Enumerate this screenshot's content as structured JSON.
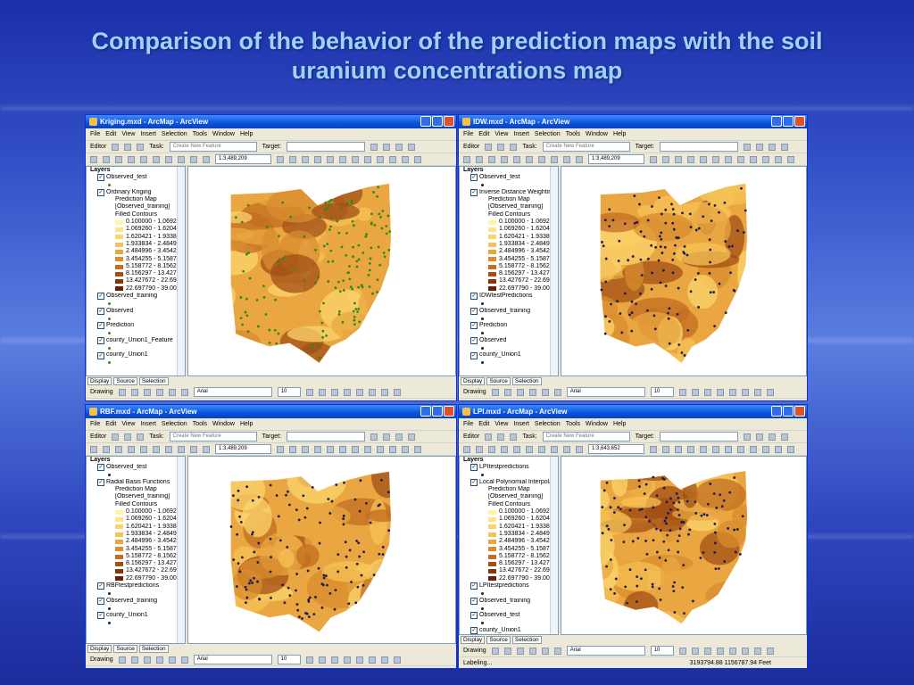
{
  "title": "Comparison of the behavior of the prediction maps with the soil uranium concentrations map",
  "menu": [
    "File",
    "Edit",
    "View",
    "Insert",
    "Selection",
    "Tools",
    "Window",
    "Help"
  ],
  "toolbar": {
    "editor": "Editor",
    "task": "Task:",
    "task_value": "Create New Feature",
    "target": "Target:",
    "drawing": "Drawing",
    "font": "Arial",
    "size": "10"
  },
  "tabs": [
    "Display",
    "Source",
    "Selection"
  ],
  "frame": "Layers",
  "classes": [
    "0.100000 - 1.069260",
    "1.069260 - 1.620421",
    "1.620421 - 1.933834",
    "1.933834 - 2.484996",
    "2.484996 - 3.454255",
    "3.454255 - 5.158772",
    "5.158772 - 8.156297",
    "8.156297 - 13.427672",
    "13.427672 - 22.697790",
    "22.697790 - 39.000000"
  ],
  "class_colors": [
    "#fff3a6",
    "#fde486",
    "#fbd46c",
    "#f6c155",
    "#eaa741",
    "#da8c2f",
    "#c26d21",
    "#a25016",
    "#83360d",
    "#6a1f06"
  ],
  "renderer": [
    "Prediction Map",
    "[Observed_training]",
    "Filled Contours"
  ],
  "windows": [
    {
      "title": "Kriging.mxd - ArcMap - ArcView",
      "scale": "1:3,489,209",
      "point_color": "#2f8a1c",
      "layers": [
        "Observed_test",
        "Ordinary Kriging",
        "Observed_training",
        "Observed",
        "Prediction",
        "county_Union1_Feature",
        "county_Union1"
      ],
      "legend_layer": 1
    },
    {
      "title": "IDW.mxd - ArcMap - ArcView",
      "scale": "1:3,489,209",
      "point_color": "#1c1c4a",
      "layers": [
        "Observed_test",
        "Inverse Distance Weighting",
        "IDWtestPredictions",
        "Observed_training",
        "Prediction",
        "Observed",
        "county_Union1"
      ],
      "legend_layer": 1
    },
    {
      "title": "RBF.mxd - ArcMap - ArcView",
      "scale": "1:3,489,209",
      "point_color": "#1c1c4a",
      "layers": [
        "Observed_test",
        "Radial Basis Functions",
        "RBFtestpredictions",
        "Observed_training",
        "county_Union1"
      ],
      "legend_layer": 1
    },
    {
      "title": "LPI.mxd - ArcMap - ArcView",
      "scale": "1:3,643,652",
      "point_color": "#1c1c4a",
      "layers": [
        "LPItestpredictions",
        "Local Polynomial Interpolation",
        "LPItestpredictions",
        "Observed_training",
        "Observed_test",
        "county_Union1"
      ],
      "legend_layer": 1,
      "status": [
        "Labeling...",
        "3193794.88  1156787.94 Feet"
      ]
    }
  ]
}
